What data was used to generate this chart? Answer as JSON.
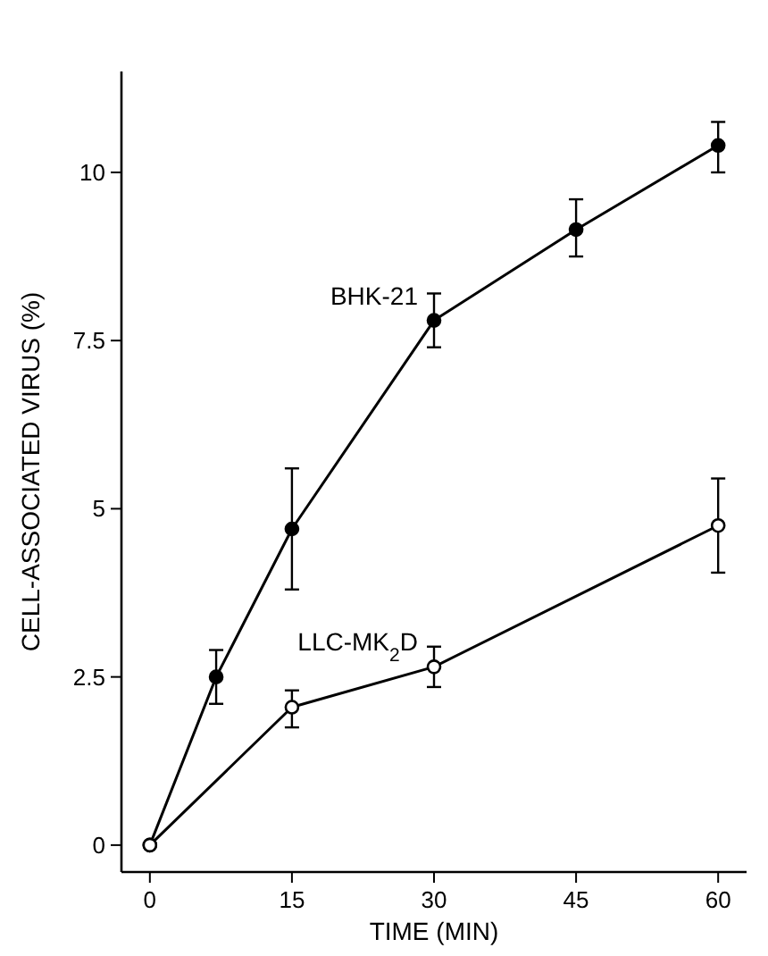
{
  "chart_data": {
    "type": "line",
    "xlabel": "TIME (MIN)",
    "ylabel": "CELL-ASSOCIATED VIRUS (%)",
    "xlim": [
      -3,
      63
    ],
    "ylim": [
      -0.4,
      11.5
    ],
    "xticks": [
      0,
      15,
      30,
      45,
      60
    ],
    "yticks": [
      0,
      2.5,
      5,
      7.5,
      10
    ],
    "marker": "circle",
    "grid": false,
    "legend": false,
    "series": [
      {
        "name": "BHK-21",
        "color": "#000000",
        "x": [
          0,
          7,
          15,
          30,
          45,
          60
        ],
        "values": [
          0,
          2.5,
          4.7,
          7.8,
          9.15,
          10.4
        ],
        "errors": [
          null,
          [
            2.1,
            2.9
          ],
          [
            3.8,
            5.6
          ],
          [
            7.4,
            8.2
          ],
          [
            8.75,
            9.6
          ],
          [
            10.0,
            10.75
          ]
        ]
      },
      {
        "name": "LLC-MK$_{2}$D",
        "color": "#000000",
        "x": [
          0,
          15,
          30,
          60
        ],
        "values": [
          0,
          2.05,
          2.65,
          4.75
        ],
        "errors": [
          null,
          [
            1.75,
            2.3
          ],
          [
            2.35,
            2.95
          ],
          [
            4.05,
            5.45
          ]
        ]
      }
    ]
  }
}
